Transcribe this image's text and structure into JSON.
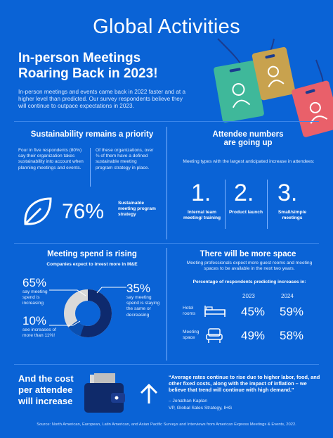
{
  "title": "Global Activities",
  "headline": {
    "line1": "In-person Meetings",
    "line2": "Roaring Back in 2023!"
  },
  "intro": "In-person meetings and events came back in 2022 faster and at a higher level than predicted. Our survey respondents believe they will continue to outpace expectations in 2023.",
  "sustainability": {
    "title": "Sustainability remains a priority",
    "left_text": "Four in five respondents (80%) say their organization takes sustainability into account when planning meetings and events.",
    "right_text": "Of these organizations, over ¾ of them have a defined sustainable meeting program strategy in place.",
    "stat": "76%",
    "stat_label": "Sustainable meeting program strategy"
  },
  "attendees": {
    "title_line1": "Attendee numbers",
    "title_line2": "are going up",
    "subtitle": "Meeting types with the largest anticipated increase in attendees:",
    "items": [
      {
        "num": "1.",
        "label": "Internal team meeting/ training"
      },
      {
        "num": "2.",
        "label": "Product launch"
      },
      {
        "num": "3.",
        "label": "Small/simple meetings"
      }
    ]
  },
  "spend": {
    "title": "Meeting spend is rising",
    "subtitle": "Companies expect to invest more in M&E",
    "stat1": "65%",
    "stat1_label": "say meeting spend is increasing",
    "stat2": "10%",
    "stat2_label": "see increases of more than 11%!",
    "stat3": "35%",
    "stat3_label": "say meeting spend is staying the same or decreasing",
    "donut": {
      "increasing": 65,
      "same_or_decreasing": 35,
      "more_than_11": 10
    }
  },
  "space": {
    "title": "There will be more space",
    "subtitle": "Meeting professionals expect more guest rooms and meeting spaces to be available in the next two years.",
    "table_title": "Percentage of respondents predicting increases in:",
    "years": [
      "2023",
      "2024"
    ],
    "rows": [
      {
        "label": "Hotel rooms",
        "icon": "bed-icon",
        "v2023": "45%",
        "v2024": "59%"
      },
      {
        "label": "Meeting space",
        "icon": "chair-icon",
        "v2023": "49%",
        "v2024": "58%"
      }
    ]
  },
  "cost": {
    "title_line1": "And the cost",
    "title_line2": "per attendee",
    "title_line3": "will increase",
    "quote": "“Average rates continue to rise due to higher labor, food, and other fixed costs, along with the impact of inflation – we believe that trend will continue with high demand.”",
    "author": "– Jonathan Kaplan",
    "author_title": "VP, Global Sales Strategy, IHG"
  },
  "source": "Source: North American, European, Latin American, and Asian Pacific Surveys and Interviews from American Express Meetings & Events, 2022.",
  "colors": {
    "background": "#0a63d6",
    "tag_green": "#3fb89a",
    "tag_gold": "#c8a24e",
    "tag_red": "#e9606a",
    "donut_dark": "#0e2a6e",
    "donut_light": "#d9d9d9",
    "wallet": "#0f2a6a"
  }
}
